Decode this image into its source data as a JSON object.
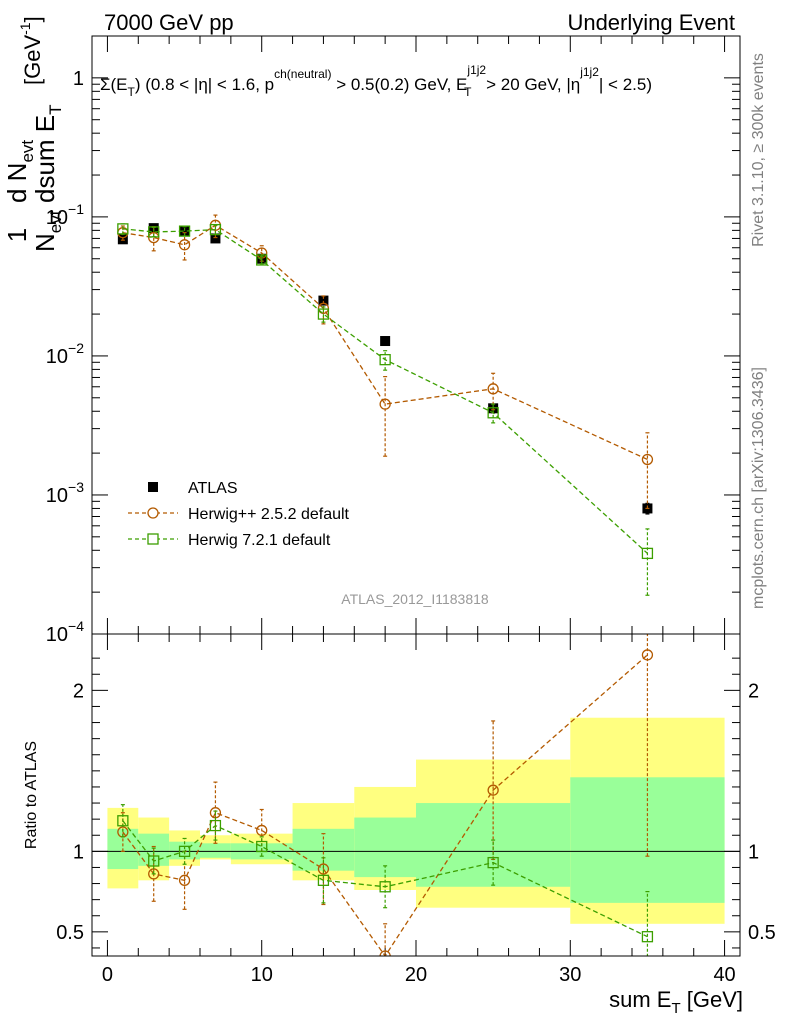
{
  "header": {
    "left": "7000 GeV pp",
    "right": "Underlying Event"
  },
  "side_labels": {
    "rivet": "Rivet 3.1.10, ≥ 300k events",
    "mcplots": "mcplots.cern.ch [arXiv:1306.3436]"
  },
  "watermark": "ATLAS_2012_I1183818",
  "colors": {
    "data": "#000000",
    "herwigpp": "#b35a00",
    "herwig7": "#3c9f00",
    "band_outer": "#ffff80",
    "band_inner": "#99ff99",
    "grid": "#000000"
  },
  "chart_data": [
    {
      "type": "scatter",
      "panel": "main",
      "title": "Σ(E_T) (0.8 < |η| < 1.6, p^ch(neutral) > 0.5(0.2) GeV, E_T^j1j2 > 20 GeV, |η^j1j2| < 2.5)",
      "title_parts": {
        "a": "Σ(E",
        "a_sub": "T",
        "b": ") (0.8 < |η| < 1.6, p",
        "b_sup": "ch(neutral)",
        "c": " > 0.5(0.2) GeV, E",
        "c_sup": "j1j2",
        "c_sub": "T",
        "d": " > 20 GeV, |η",
        "d_sup": "j1j2",
        "e": "| < 2.5)"
      },
      "ylabel": "1/N_evt dN_evt/dsum E_T [GeV^-1]",
      "ylabel_parts": {
        "one": "1",
        "N": "N",
        "N_sub": "evt",
        "dN": "d N",
        "dN_sub": "evt",
        "dsum": "dsum E",
        "dsum_sub": "T",
        "unit": "[GeV",
        "unit_sup": "-1",
        "unit_end": "]"
      },
      "yscale": "log",
      "ylim": [
        0.0001,
        2
      ],
      "xlim": [
        -1,
        41
      ],
      "y_ticks": [
        {
          "value": 0.0001,
          "base": "10",
          "exp": "−4"
        },
        {
          "value": 0.001,
          "base": "10",
          "exp": "−3"
        },
        {
          "value": 0.01,
          "base": "10",
          "exp": "−2"
        },
        {
          "value": 0.1,
          "base": "10",
          "exp": "−1"
        },
        {
          "value": 1,
          "base": "1",
          "exp": ""
        }
      ],
      "legend_position": "bottom-left",
      "series": [
        {
          "name": "ATLAS",
          "marker": "filled-square",
          "x": [
            1,
            3,
            5,
            7,
            10,
            14,
            18,
            25,
            35
          ],
          "y": [
            0.069,
            0.083,
            0.079,
            0.07,
            0.05,
            0.025,
            0.0128,
            0.0042,
            0.0008
          ],
          "err": [
            0.004,
            0.004,
            0.004,
            0.004,
            0.003,
            0.0015,
            0.0008,
            0.0003,
            7e-05
          ]
        },
        {
          "name": "Herwig++ 2.5.2 default",
          "marker": "open-circle",
          "x": [
            1,
            3,
            5,
            7,
            10,
            14,
            18,
            25,
            35
          ],
          "y": [
            0.077,
            0.071,
            0.063,
            0.087,
            0.055,
            0.022,
            0.0045,
            0.0058,
            0.0018
          ],
          "err": [
            0.009,
            0.014,
            0.014,
            0.016,
            0.007,
            0.005,
            0.0026,
            0.0017,
            0.001
          ]
        },
        {
          "name": "Herwig 7.2.1 default",
          "marker": "open-square",
          "x": [
            1,
            3,
            5,
            7,
            10,
            14,
            18,
            25,
            35
          ],
          "y": [
            0.082,
            0.078,
            0.079,
            0.081,
            0.049,
            0.02,
            0.0094,
            0.0039,
            0.00038
          ],
          "err": [
            0.007,
            0.006,
            0.006,
            0.006,
            0.003,
            0.0025,
            0.0015,
            0.0006,
            0.00019
          ]
        }
      ]
    },
    {
      "type": "scatter",
      "panel": "ratio",
      "ylabel": "Ratio to ATLAS",
      "xlabel": "sum E_T [GeV]",
      "xlabel_parts": {
        "a": "sum E",
        "a_sub": "T",
        "b": " [GeV]"
      },
      "xlim": [
        -1,
        41
      ],
      "ylim": [
        0.35,
        2.35
      ],
      "x_ticks": [
        0,
        10,
        20,
        30,
        40
      ],
      "y_ticks": [
        0.5,
        1,
        2
      ],
      "reference_line": 1,
      "bands": {
        "bin_edges": [
          0,
          2,
          4,
          6,
          8,
          12,
          16,
          20,
          30,
          40
        ],
        "outer_low": [
          0.77,
          0.82,
          0.91,
          0.95,
          0.92,
          0.82,
          0.76,
          0.65,
          0.55
        ],
        "outer_high": [
          1.27,
          1.21,
          1.13,
          1.1,
          1.11,
          1.3,
          1.4,
          1.57,
          1.83
        ],
        "inner_low": [
          0.89,
          0.91,
          0.95,
          0.96,
          0.95,
          0.88,
          0.84,
          0.78,
          0.68
        ],
        "inner_high": [
          1.14,
          1.11,
          1.06,
          1.05,
          1.05,
          1.14,
          1.21,
          1.3,
          1.46
        ]
      },
      "series": [
        {
          "name": "Herwig++ 2.5.2 default",
          "marker": "open-circle",
          "x": [
            1,
            3,
            5,
            7,
            10,
            14,
            18,
            25,
            35
          ],
          "y": [
            1.12,
            0.86,
            0.82,
            1.24,
            1.13,
            0.89,
            0.35,
            1.38,
            2.22
          ],
          "err_low": [
            0.12,
            0.17,
            0.18,
            0.19,
            0.13,
            0.22,
            0.2,
            0.43,
            1.25
          ],
          "err_high": [
            0.12,
            0.17,
            0.18,
            0.19,
            0.13,
            0.22,
            0.2,
            0.43,
            1.25
          ]
        },
        {
          "name": "Herwig 7.2.1 default",
          "marker": "open-square",
          "x": [
            1,
            3,
            5,
            7,
            10,
            14,
            18,
            25,
            35
          ],
          "y": [
            1.19,
            0.94,
            1.0,
            1.16,
            1.03,
            0.82,
            0.78,
            0.93,
            0.47
          ],
          "err_low": [
            0.1,
            0.08,
            0.08,
            0.09,
            0.06,
            0.14,
            0.13,
            0.14,
            0.28
          ],
          "err_high": [
            0.1,
            0.08,
            0.08,
            0.09,
            0.06,
            0.14,
            0.13,
            0.14,
            0.28
          ]
        }
      ]
    }
  ]
}
